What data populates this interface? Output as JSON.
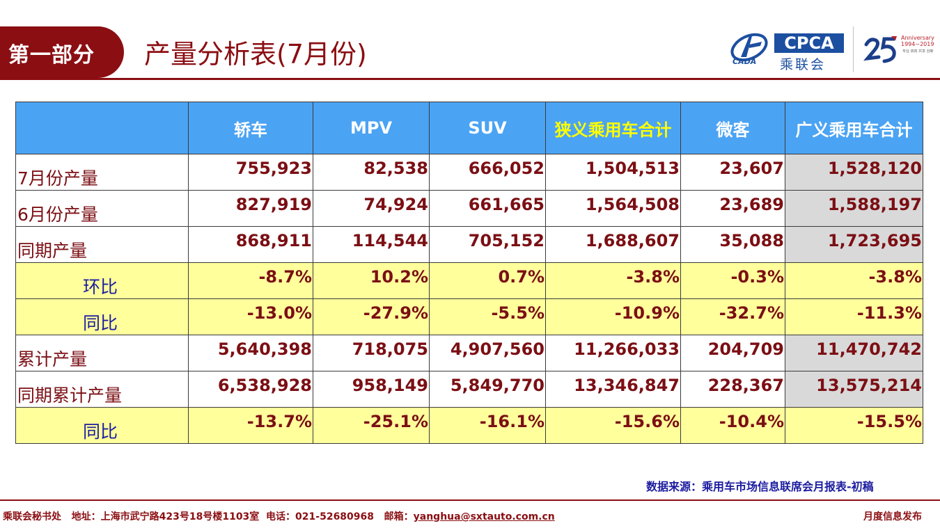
{
  "header": {
    "section_label": "第一部分",
    "title": "产量分析表(7月份)",
    "logos": {
      "cada_text": "CADA",
      "cpca_text": "CPCA",
      "cpca_cn": "乘联会",
      "anniversary_line1": "Anniversary",
      "anniversary_line2": "1994~2019",
      "anniversary_sub": "专业 高效 共享 创新"
    }
  },
  "table": {
    "columns": [
      "",
      "轿车",
      "MPV",
      "SUV",
      "狭义乘用车合计",
      "微客",
      "广义乘用车合计"
    ],
    "rows": [
      {
        "label": "7月份产量",
        "values": [
          "755,923",
          "82,538",
          "666,052",
          "1,504,513",
          "23,607",
          "1,528,120"
        ]
      },
      {
        "label": "6月份产量",
        "values": [
          "827,919",
          "74,924",
          "661,665",
          "1,564,508",
          "23,689",
          "1,588,197"
        ]
      },
      {
        "label": "同期产量",
        "values": [
          "868,911",
          "114,544",
          "705,152",
          "1,688,607",
          "35,088",
          "1,723,695"
        ]
      },
      {
        "label": "环比",
        "values": [
          "-8.7%",
          "10.2%",
          "0.7%",
          "-3.8%",
          "-0.3%",
          "-3.8%"
        ]
      },
      {
        "label": "同比",
        "values": [
          "-13.0%",
          "-27.9%",
          "-5.5%",
          "-10.9%",
          "-32.7%",
          "-11.3%"
        ]
      },
      {
        "label": "累计产量",
        "values": [
          "5,640,398",
          "718,075",
          "4,907,560",
          "11,266,033",
          "204,709",
          "11,470,742"
        ]
      },
      {
        "label": "同期累计产量",
        "values": [
          "6,538,928",
          "958,149",
          "5,849,770",
          "13,346,847",
          "228,367",
          "13,575,214"
        ]
      },
      {
        "label": "同比",
        "values": [
          "-13.7%",
          "-25.1%",
          "-16.1%",
          "-15.6%",
          "-10.4%",
          "-15.5%"
        ]
      }
    ]
  },
  "source": "数据来源：乘用车市场信息联席会月报表-初稿",
  "footer": {
    "org": "乘联会秘书处",
    "address": "地址：上海市武宁路423号18号楼1103室",
    "phone": "电话：021-52680968",
    "email_label": "邮箱：",
    "email": "yanghua@sxtauto.com.cn",
    "right": "月度信息发布"
  },
  "colors": {
    "brand_dark_red": "#8b0e12",
    "header_blue": "#4ba3f3",
    "highlight_yellow": "#ffff9c",
    "logo_blue": "#1c4fa0"
  }
}
